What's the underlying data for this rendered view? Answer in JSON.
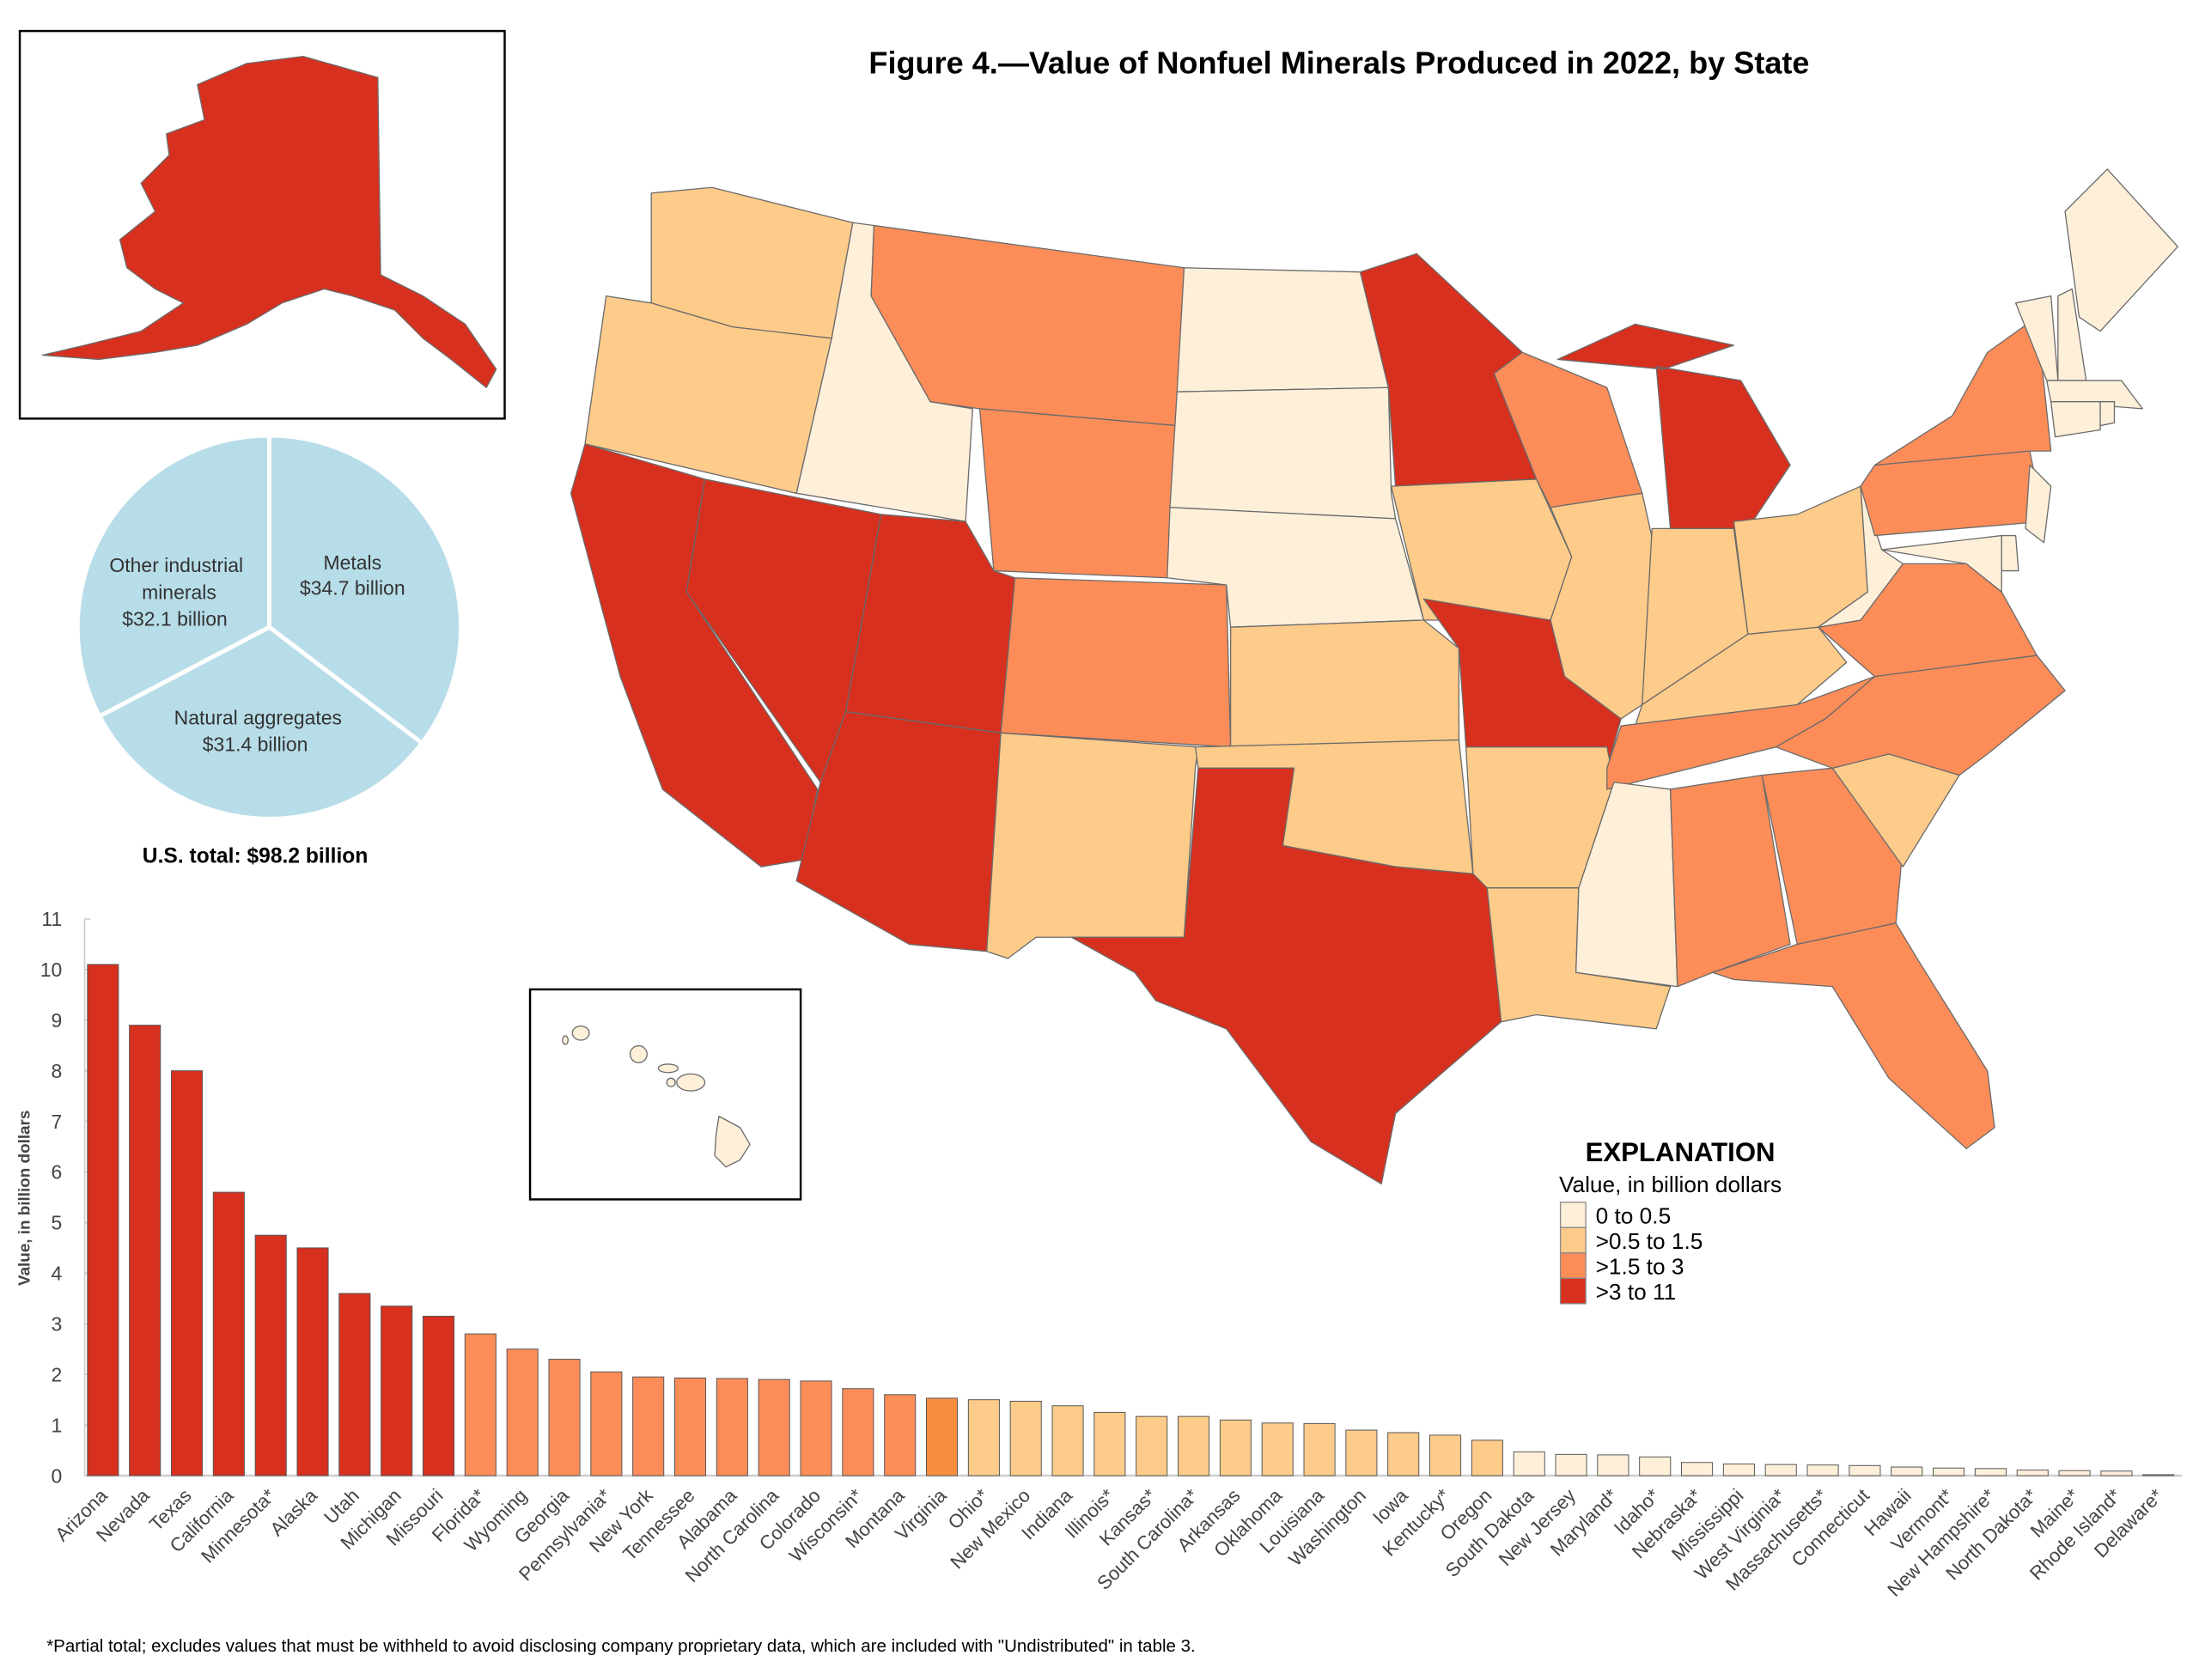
{
  "title": "Figure 4.—Value of Nonfuel Minerals Produced in 2022, by State",
  "footnote": "*Partial total; excludes values that must be withheld to avoid disclosing company proprietary data, which are included with \"Undistributed\" in table 3.",
  "legend": {
    "title": "EXPLANATION",
    "subtitle": "Value, in billion dollars",
    "bins": [
      {
        "label": "0 to 0.5",
        "color": "#FEEFD9",
        "max": 0.5
      },
      {
        "label": ">0.5 to 1.5",
        "color": "#FDCB8A",
        "max": 1.5
      },
      {
        "label": ">1.5 to 3",
        "color": "#FC8D59",
        "max": 3
      },
      {
        "label": ">3 to 11",
        "color": "#D7301F",
        "max": 11
      }
    ]
  },
  "chart_data": [
    {
      "type": "pie",
      "slices": [
        {
          "label": "Metals",
          "value_label": "$34.7 billion",
          "value": 34.7
        },
        {
          "label": "Natural aggregates",
          "value_label": "$31.4 billion",
          "value": 31.4
        },
        {
          "label": "Other industrial minerals",
          "value_label": "$32.1 billion",
          "value": 32.1
        }
      ],
      "color": "#B7DDE8",
      "caption": "U.S. total: $98.2 billion"
    },
    {
      "type": "bar",
      "xlabel": "",
      "ylabel": "Value, in billion dollars",
      "ylim": [
        0,
        11
      ],
      "yticks": [
        0,
        1,
        2,
        3,
        4,
        5,
        6,
        7,
        8,
        9,
        10,
        11
      ],
      "highlight": {
        "category": "Virginia",
        "color": "#F98E3F"
      },
      "categories": [
        "Arizona",
        "Nevada",
        "Texas",
        "California",
        "Minnesota*",
        "Alaska",
        "Utah",
        "Michigan",
        "Missouri",
        "Florida*",
        "Wyoming",
        "Georgia",
        "Pennsylvania*",
        "New York",
        "Tennessee",
        "Alabama",
        "North Carolina",
        "Colorado",
        "Wisconsin*",
        "Montana",
        "Virginia",
        "Ohio*",
        "New Mexico",
        "Indiana",
        "Illinois*",
        "Kansas*",
        "South Carolina*",
        "Arkansas",
        "Oklahoma",
        "Louisiana",
        "Washington",
        "Iowa",
        "Kentucky*",
        "Oregon",
        "South Dakota",
        "New Jersey",
        "Maryland*",
        "Idaho*",
        "Nebraska*",
        "Mississippi",
        "West Virginia*",
        "Massachusetts*",
        "Connecticut",
        "Hawaii",
        "Vermont*",
        "New Hampshire*",
        "North Dakota*",
        "Maine*",
        "Rhode Island*",
        "Delaware*"
      ],
      "values": [
        10.1,
        8.9,
        8.0,
        5.6,
        4.75,
        4.5,
        3.6,
        3.35,
        3.15,
        2.8,
        2.5,
        2.3,
        2.05,
        1.95,
        1.93,
        1.92,
        1.9,
        1.87,
        1.72,
        1.6,
        1.53,
        1.5,
        1.47,
        1.38,
        1.25,
        1.17,
        1.17,
        1.1,
        1.04,
        1.03,
        0.9,
        0.85,
        0.8,
        0.7,
        0.47,
        0.42,
        0.41,
        0.37,
        0.26,
        0.23,
        0.22,
        0.21,
        0.2,
        0.17,
        0.15,
        0.14,
        0.11,
        0.1,
        0.09,
        0.02
      ]
    }
  ],
  "map": {
    "states": [
      {
        "name": "Washington",
        "bin": 1
      },
      {
        "name": "Oregon",
        "bin": 1
      },
      {
        "name": "California",
        "bin": 3
      },
      {
        "name": "Nevada",
        "bin": 3
      },
      {
        "name": "Idaho",
        "bin": 0
      },
      {
        "name": "Montana",
        "bin": 2
      },
      {
        "name": "Wyoming",
        "bin": 2
      },
      {
        "name": "Utah",
        "bin": 3
      },
      {
        "name": "Arizona",
        "bin": 3
      },
      {
        "name": "Colorado",
        "bin": 2
      },
      {
        "name": "New Mexico",
        "bin": 1
      },
      {
        "name": "North Dakota",
        "bin": 0
      },
      {
        "name": "South Dakota",
        "bin": 0
      },
      {
        "name": "Nebraska",
        "bin": 0
      },
      {
        "name": "Kansas",
        "bin": 1
      },
      {
        "name": "Oklahoma",
        "bin": 1
      },
      {
        "name": "Texas",
        "bin": 3
      },
      {
        "name": "Minnesota",
        "bin": 3
      },
      {
        "name": "Iowa",
        "bin": 1
      },
      {
        "name": "Missouri",
        "bin": 3
      },
      {
        "name": "Arkansas",
        "bin": 1
      },
      {
        "name": "Louisiana",
        "bin": 1
      },
      {
        "name": "Wisconsin",
        "bin": 2
      },
      {
        "name": "Illinois",
        "bin": 1
      },
      {
        "name": "Michigan",
        "bin": 3
      },
      {
        "name": "Indiana",
        "bin": 1
      },
      {
        "name": "Ohio",
        "bin": 1
      },
      {
        "name": "Kentucky",
        "bin": 1
      },
      {
        "name": "Tennessee",
        "bin": 2
      },
      {
        "name": "Mississippi",
        "bin": 0
      },
      {
        "name": "Alabama",
        "bin": 2
      },
      {
        "name": "Georgia",
        "bin": 2
      },
      {
        "name": "Florida",
        "bin": 2
      },
      {
        "name": "South Carolina",
        "bin": 1
      },
      {
        "name": "North Carolina",
        "bin": 2
      },
      {
        "name": "Virginia",
        "bin": 2
      },
      {
        "name": "West Virginia",
        "bin": 0
      },
      {
        "name": "Pennsylvania",
        "bin": 2
      },
      {
        "name": "New York",
        "bin": 2
      },
      {
        "name": "Maryland",
        "bin": 0
      },
      {
        "name": "New Jersey",
        "bin": 0
      },
      {
        "name": "Delaware",
        "bin": 0
      },
      {
        "name": "Vermont",
        "bin": 0
      },
      {
        "name": "New Hampshire",
        "bin": 0
      },
      {
        "name": "Maine",
        "bin": 0
      },
      {
        "name": "Massachusetts",
        "bin": 0
      },
      {
        "name": "Connecticut",
        "bin": 0
      },
      {
        "name": "Rhode Island",
        "bin": 0
      },
      {
        "name": "Alaska",
        "bin": 3
      },
      {
        "name": "Hawaii",
        "bin": 0
      }
    ]
  }
}
